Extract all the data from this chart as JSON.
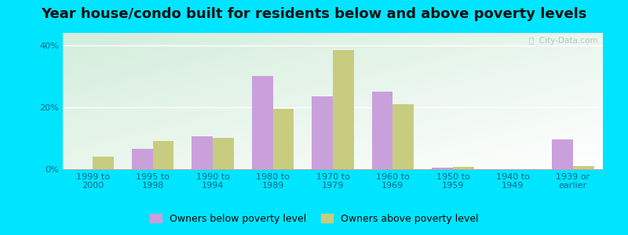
{
  "title": "Year house/condo built for residents below and above poverty levels",
  "categories": [
    "1999 to\n2000",
    "1995 to\n1998",
    "1990 to\n1994",
    "1980 to\n1989",
    "1970 to\n1979",
    "1960 to\n1969",
    "1950 to\n1959",
    "1940 to\n1949",
    "1939 or\nearlier"
  ],
  "below_poverty": [
    0.0,
    6.5,
    10.5,
    30.0,
    23.5,
    25.0,
    0.5,
    0.0,
    9.5
  ],
  "above_poverty": [
    4.0,
    9.0,
    10.0,
    19.5,
    38.5,
    21.0,
    0.8,
    0.0,
    1.0
  ],
  "below_color": "#c9a0dc",
  "above_color": "#c8cc7f",
  "background_outer": "#00e5ff",
  "grid_color": "#ffffff",
  "yticks": [
    0,
    20,
    40
  ],
  "ylim": [
    0,
    44
  ],
  "bar_width": 0.35,
  "legend_below_label": "Owners below poverty level",
  "legend_above_label": "Owners above poverty level",
  "title_fontsize": 13,
  "tick_fontsize": 8,
  "legend_fontsize": 9,
  "watermark": "City-Data.com"
}
